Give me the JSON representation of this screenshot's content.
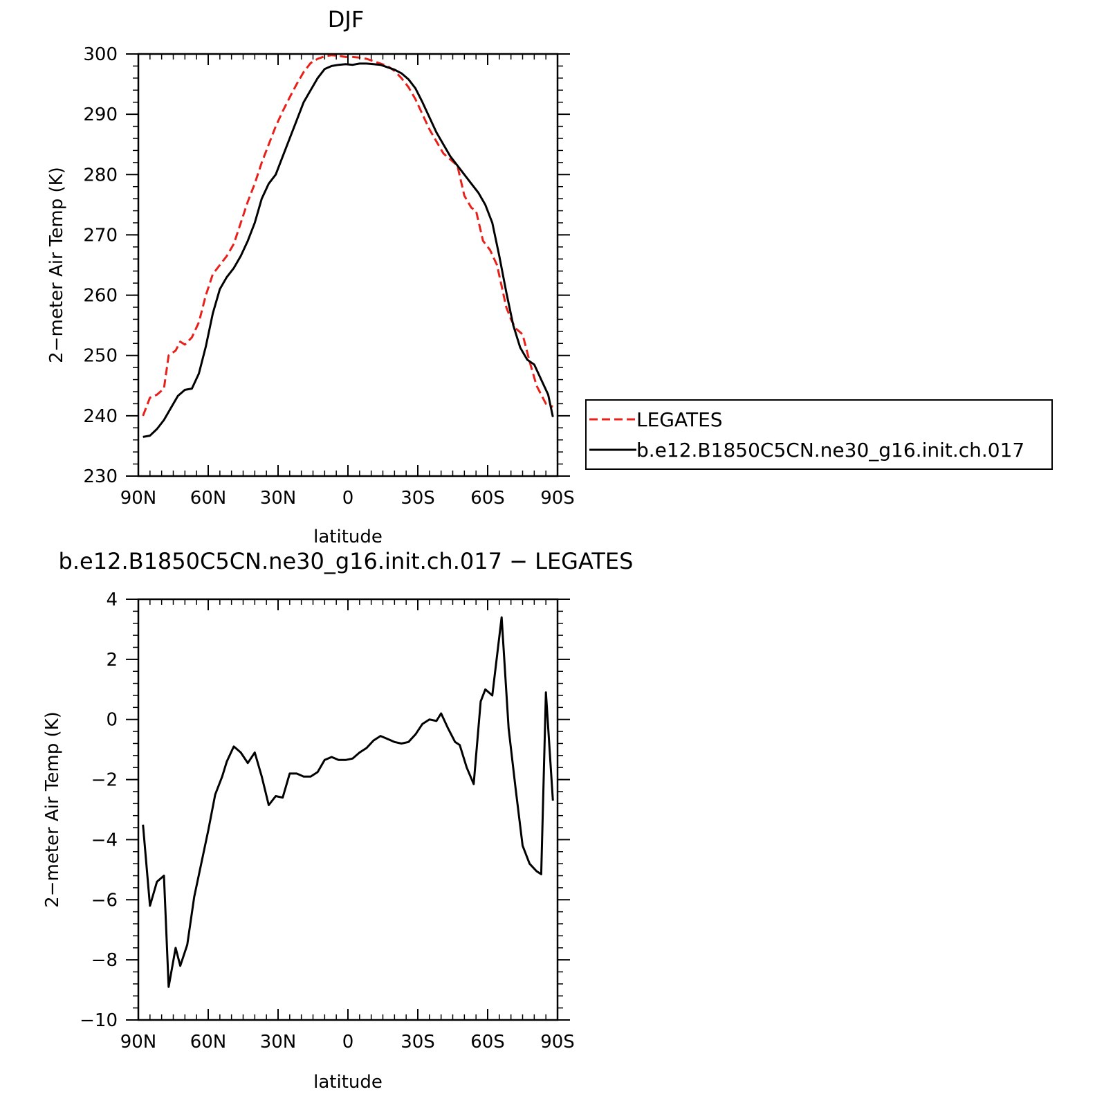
{
  "colors": {
    "legates": "#e8201a",
    "model": "#000000",
    "axis": "#000000",
    "background": "#ffffff"
  },
  "chart_data": [
    {
      "type": "line",
      "title": "DJF",
      "xlabel": "latitude",
      "ylabel": "2−meter Air Temp (K)",
      "xlim": [
        90,
        -90
      ],
      "ylim": [
        230,
        300
      ],
      "xticks": [
        90,
        60,
        30,
        0,
        -30,
        -60,
        -90
      ],
      "xtick_labels": [
        "90N",
        "60N",
        "30N",
        "0",
        "30S",
        "60S",
        "90S"
      ],
      "yticks": [
        230,
        240,
        250,
        260,
        270,
        280,
        290,
        300
      ],
      "ytick_labels": [
        "230",
        "240",
        "250",
        "260",
        "270",
        "280",
        "290",
        "300"
      ],
      "grid": false,
      "legend_position": "right",
      "series": [
        {
          "name": "LEGATES",
          "style": "dashed",
          "color": "#e8201a",
          "x": [
            88,
            85,
            82,
            79,
            77,
            74,
            72,
            70,
            67,
            64,
            61,
            58,
            55,
            52,
            49,
            46,
            43,
            40,
            37,
            34,
            31,
            28,
            25,
            22,
            19,
            16,
            13,
            10,
            7,
            4,
            1,
            -2,
            -5,
            -8,
            -11,
            -14,
            -17,
            -20,
            -23,
            -26,
            -29,
            -32,
            -35,
            -38,
            -41,
            -44,
            -47,
            -50,
            -53,
            -55,
            -58,
            -61,
            -64,
            -66,
            -68,
            -70,
            -72,
            -75,
            -78,
            -81,
            -83,
            -85,
            -86,
            -88
          ],
          "y": [
            240.0,
            243.0,
            243.5,
            244.5,
            250.0,
            250.8,
            252.3,
            251.8,
            253.0,
            255.5,
            260.0,
            263.5,
            265.0,
            266.5,
            268.5,
            272.0,
            275.5,
            278.5,
            282.0,
            285.0,
            288.0,
            290.5,
            292.8,
            295.0,
            297.0,
            298.5,
            299.2,
            299.6,
            299.8,
            299.7,
            299.5,
            299.5,
            299.4,
            299.2,
            298.8,
            298.4,
            298.0,
            297.2,
            296.0,
            294.5,
            292.5,
            290.0,
            287.5,
            285.5,
            283.5,
            282.5,
            281.5,
            276.5,
            274.5,
            274.0,
            269.0,
            267.5,
            265.0,
            261.5,
            258.0,
            256.0,
            254.5,
            253.5,
            249.0,
            245.0,
            243.5,
            242.0,
            241.8,
            241.5
          ]
        },
        {
          "name": "b.e12.B1850C5CN.ne30_g16.init.ch.017",
          "style": "solid",
          "color": "#000000",
          "x": [
            88,
            85,
            82,
            79,
            76,
            73,
            70,
            67,
            64,
            61,
            58,
            55,
            52,
            49,
            46,
            43,
            40,
            37,
            34,
            31,
            28,
            25,
            22,
            19,
            16,
            13,
            10,
            7,
            4,
            1,
            -2,
            -5,
            -8,
            -11,
            -14,
            -17,
            -20,
            -23,
            -26,
            -29,
            -32,
            -35,
            -38,
            -41,
            -44,
            -47,
            -50,
            -53,
            -56,
            -59,
            -62,
            -65,
            -68,
            -71,
            -74,
            -77,
            -80,
            -83,
            -86,
            -88
          ],
          "y": [
            236.5,
            236.7,
            237.8,
            239.3,
            241.3,
            243.3,
            244.3,
            244.5,
            247.0,
            251.5,
            257.0,
            261.0,
            263.0,
            264.5,
            266.5,
            269.0,
            272.0,
            276.0,
            278.5,
            280.0,
            283.0,
            286.0,
            289.0,
            292.0,
            294.0,
            296.0,
            297.5,
            298.0,
            298.2,
            298.3,
            298.2,
            298.4,
            298.4,
            298.3,
            298.2,
            297.8,
            297.4,
            296.8,
            295.8,
            294.3,
            292.0,
            289.5,
            287.0,
            285.0,
            283.0,
            281.5,
            280.0,
            278.5,
            277.0,
            275.0,
            272.0,
            266.5,
            260.5,
            255.0,
            251.3,
            249.3,
            248.5,
            246.0,
            243.5,
            239.8
          ]
        }
      ]
    },
    {
      "type": "line",
      "title": "b.e12.B1850C5CN.ne30_g16.init.ch.017 − LEGATES",
      "xlabel": "latitude",
      "ylabel": "2−meter Air Temp (K)",
      "xlim": [
        90,
        -90
      ],
      "ylim": [
        -10,
        4
      ],
      "xticks": [
        90,
        60,
        30,
        0,
        -30,
        -60,
        -90
      ],
      "xtick_labels": [
        "90N",
        "60N",
        "30N",
        "0",
        "30S",
        "60S",
        "90S"
      ],
      "yticks": [
        -10,
        -8,
        -6,
        -4,
        -2,
        0,
        2,
        4
      ],
      "ytick_labels": [
        "−10",
        "−8",
        "−6",
        "−4",
        "−2",
        "0",
        "2",
        "4"
      ],
      "grid": false,
      "series": [
        {
          "style": "solid",
          "color": "#000000",
          "x": [
            88,
            85,
            82,
            79,
            77,
            74,
            72,
            69,
            66,
            63,
            60,
            57,
            54,
            52,
            49,
            46,
            43,
            40,
            37,
            34,
            31,
            28,
            25,
            22,
            19,
            16,
            13,
            10,
            7,
            4,
            1,
            -2,
            -5,
            -8,
            -11,
            -14,
            -17,
            -20,
            -23,
            -26,
            -29,
            -32,
            -35,
            -38,
            -40,
            -43,
            -46,
            -48,
            -51,
            -54,
            -57,
            -59,
            -62,
            -66,
            -69,
            -72,
            -75,
            -78,
            -81,
            -83,
            -85,
            -88
          ],
          "y": [
            -3.5,
            -6.2,
            -5.4,
            -5.2,
            -8.9,
            -7.6,
            -8.2,
            -7.5,
            -5.9,
            -4.8,
            -3.7,
            -2.5,
            -1.9,
            -1.4,
            -0.9,
            -1.1,
            -1.45,
            -1.1,
            -1.9,
            -2.85,
            -2.55,
            -2.6,
            -1.8,
            -1.8,
            -1.9,
            -1.9,
            -1.75,
            -1.35,
            -1.25,
            -1.35,
            -1.35,
            -1.3,
            -1.1,
            -0.95,
            -0.7,
            -0.55,
            -0.65,
            -0.75,
            -0.8,
            -0.75,
            -0.5,
            -0.15,
            0.0,
            -0.05,
            0.2,
            -0.3,
            -0.75,
            -0.85,
            -1.6,
            -2.15,
            0.6,
            1.0,
            0.8,
            3.4,
            -0.3,
            -2.3,
            -4.2,
            -4.8,
            -5.05,
            -5.15,
            0.9,
            -2.7
          ]
        }
      ]
    }
  ],
  "legend": {
    "items": [
      {
        "label": "LEGATES",
        "color": "#e8201a",
        "style": "dashed"
      },
      {
        "label": "b.e12.B1850C5CN.ne30_g16.init.ch.017",
        "color": "#000000",
        "style": "solid"
      }
    ]
  }
}
